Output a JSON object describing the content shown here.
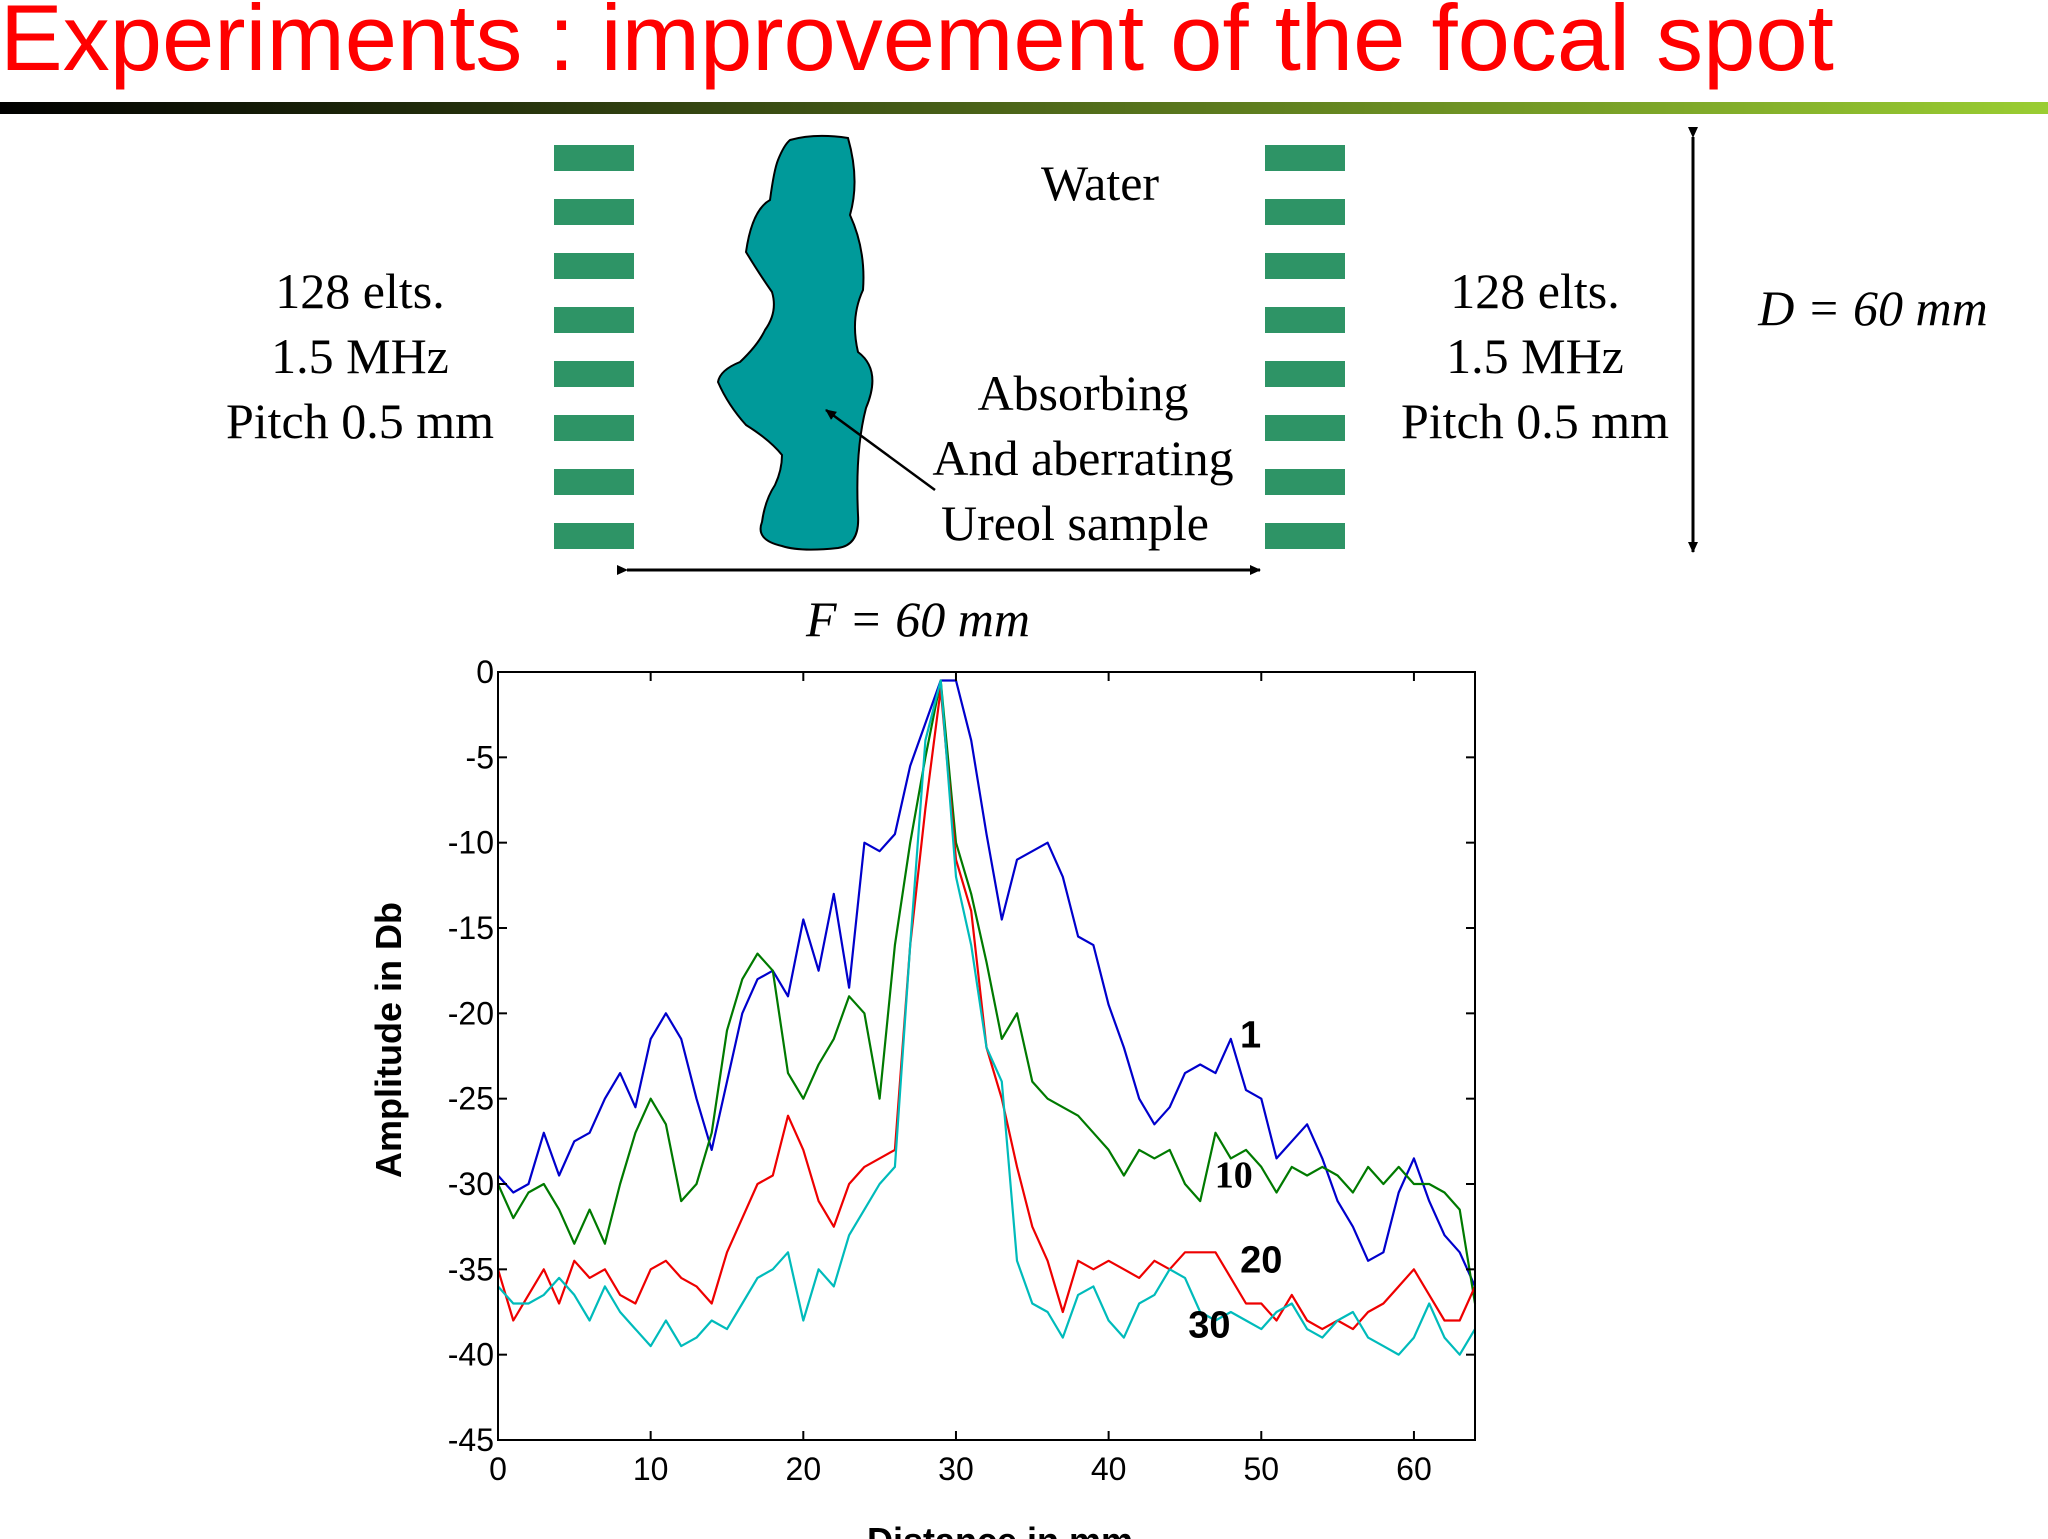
{
  "title": "Experiments : improvement of the focal spot",
  "colors": {
    "title": "#ff0000",
    "bar_gradient": [
      "#000000",
      "#9acd32"
    ],
    "element": "#2e9466",
    "sample": "#009a9a",
    "series": [
      "#0000cc",
      "#007a00",
      "#ee0000",
      "#00bbbb"
    ]
  },
  "diagram": {
    "medium_label": "Water",
    "left_array": [
      "128 elts.",
      "1.5 MHz",
      "Pitch 0.5 mm"
    ],
    "right_array": [
      "128 elts.",
      "1.5 MHz",
      "Pitch 0.5 mm"
    ],
    "sample_label": [
      "Absorbing",
      "And aberrating",
      "Ureol sample"
    ],
    "focal_label": "F = 60 mm",
    "aperture_label": "D = 60 mm"
  },
  "chart_data": {
    "type": "line",
    "xlabel": "Distance in mm",
    "ylabel": "Amplitude in Db",
    "xlim": [
      0,
      64
    ],
    "ylim": [
      -45,
      0
    ],
    "xticks": [
      "0",
      "10",
      "20",
      "30",
      "40",
      "50",
      "60"
    ],
    "yticks": [
      "0",
      "-5",
      "-10",
      "-15",
      "-20",
      "-25",
      "-30",
      "-35",
      "-40",
      "-45"
    ],
    "grid": false,
    "series": [
      {
        "name": "1",
        "points": [
          [
            0,
            -29.5
          ],
          [
            1,
            -30.5
          ],
          [
            2,
            -30
          ],
          [
            3,
            -27
          ],
          [
            4,
            -29.5
          ],
          [
            5,
            -27.5
          ],
          [
            6,
            -27
          ],
          [
            7,
            -25
          ],
          [
            8,
            -23.5
          ],
          [
            9,
            -25.5
          ],
          [
            10,
            -21.5
          ],
          [
            11,
            -20
          ],
          [
            12,
            -21.5
          ],
          [
            13,
            -25
          ],
          [
            14,
            -28
          ],
          [
            15,
            -24
          ],
          [
            16,
            -20
          ],
          [
            17,
            -18
          ],
          [
            18,
            -17.5
          ],
          [
            19,
            -19
          ],
          [
            20,
            -14.5
          ],
          [
            21,
            -17.5
          ],
          [
            22,
            -13
          ],
          [
            23,
            -18.5
          ],
          [
            24,
            -10
          ],
          [
            25,
            -10.5
          ],
          [
            26,
            -9.5
          ],
          [
            27,
            -5.5
          ],
          [
            28,
            -3
          ],
          [
            29,
            -0.5
          ],
          [
            30,
            -0.5
          ],
          [
            31,
            -4
          ],
          [
            32,
            -9.5
          ],
          [
            33,
            -14.5
          ],
          [
            34,
            -11
          ],
          [
            35,
            -10.5
          ],
          [
            36,
            -10
          ],
          [
            37,
            -12
          ],
          [
            38,
            -15.5
          ],
          [
            39,
            -16
          ],
          [
            40,
            -19.5
          ],
          [
            41,
            -22
          ],
          [
            42,
            -25
          ],
          [
            43,
            -26.5
          ],
          [
            44,
            -25.5
          ],
          [
            45,
            -23.5
          ],
          [
            46,
            -23
          ],
          [
            47,
            -23.5
          ],
          [
            48,
            -21.5
          ],
          [
            49,
            -24.5
          ],
          [
            50,
            -25
          ],
          [
            51,
            -28.5
          ],
          [
            52,
            -27.5
          ],
          [
            53,
            -26.5
          ],
          [
            54,
            -28.5
          ],
          [
            55,
            -31
          ],
          [
            56,
            -32.5
          ],
          [
            57,
            -34.5
          ],
          [
            58,
            -34
          ],
          [
            59,
            -30.5
          ],
          [
            60,
            -28.5
          ],
          [
            61,
            -31
          ],
          [
            62,
            -33
          ],
          [
            63,
            -34
          ],
          [
            64,
            -36
          ]
        ]
      },
      {
        "name": "10",
        "points": [
          [
            0,
            -30
          ],
          [
            1,
            -32
          ],
          [
            2,
            -30.5
          ],
          [
            3,
            -30
          ],
          [
            4,
            -31.5
          ],
          [
            5,
            -33.5
          ],
          [
            6,
            -31.5
          ],
          [
            7,
            -33.5
          ],
          [
            8,
            -30
          ],
          [
            9,
            -27
          ],
          [
            10,
            -25
          ],
          [
            11,
            -26.5
          ],
          [
            12,
            -31
          ],
          [
            13,
            -30
          ],
          [
            14,
            -27
          ],
          [
            15,
            -21
          ],
          [
            16,
            -18
          ],
          [
            17,
            -16.5
          ],
          [
            18,
            -17.5
          ],
          [
            19,
            -23.5
          ],
          [
            20,
            -25
          ],
          [
            21,
            -23
          ],
          [
            22,
            -21.5
          ],
          [
            23,
            -19
          ],
          [
            24,
            -20
          ],
          [
            25,
            -25
          ],
          [
            26,
            -16
          ],
          [
            27,
            -10
          ],
          [
            28,
            -5
          ],
          [
            29,
            -0.5
          ],
          [
            30,
            -10
          ],
          [
            31,
            -13
          ],
          [
            32,
            -17
          ],
          [
            33,
            -21.5
          ],
          [
            34,
            -20
          ],
          [
            35,
            -24
          ],
          [
            36,
            -25
          ],
          [
            37,
            -25.5
          ],
          [
            38,
            -26
          ],
          [
            39,
            -27
          ],
          [
            40,
            -28
          ],
          [
            41,
            -29.5
          ],
          [
            42,
            -28
          ],
          [
            43,
            -28.5
          ],
          [
            44,
            -28
          ],
          [
            45,
            -30
          ],
          [
            46,
            -31
          ],
          [
            47,
            -27
          ],
          [
            48,
            -28.5
          ],
          [
            49,
            -28
          ],
          [
            50,
            -29
          ],
          [
            51,
            -30.5
          ],
          [
            52,
            -29
          ],
          [
            53,
            -29.5
          ],
          [
            54,
            -29
          ],
          [
            55,
            -29.5
          ],
          [
            56,
            -30.5
          ],
          [
            57,
            -29
          ],
          [
            58,
            -30
          ],
          [
            59,
            -29
          ],
          [
            60,
            -30
          ],
          [
            61,
            -30
          ],
          [
            62,
            -30.5
          ],
          [
            63,
            -31.5
          ],
          [
            64,
            -37
          ]
        ]
      },
      {
        "name": "20",
        "points": [
          [
            0,
            -35
          ],
          [
            1,
            -38
          ],
          [
            2,
            -36.5
          ],
          [
            3,
            -35
          ],
          [
            4,
            -37
          ],
          [
            5,
            -34.5
          ],
          [
            6,
            -35.5
          ],
          [
            7,
            -35
          ],
          [
            8,
            -36.5
          ],
          [
            9,
            -37
          ],
          [
            10,
            -35
          ],
          [
            11,
            -34.5
          ],
          [
            12,
            -35.5
          ],
          [
            13,
            -36
          ],
          [
            14,
            -37
          ],
          [
            15,
            -34
          ],
          [
            16,
            -32
          ],
          [
            17,
            -30
          ],
          [
            18,
            -29.5
          ],
          [
            19,
            -26
          ],
          [
            20,
            -28
          ],
          [
            21,
            -31
          ],
          [
            22,
            -32.5
          ],
          [
            23,
            -30
          ],
          [
            24,
            -29
          ],
          [
            25,
            -28.5
          ],
          [
            26,
            -28
          ],
          [
            27,
            -16
          ],
          [
            28,
            -8
          ],
          [
            29,
            -1
          ],
          [
            30,
            -11
          ],
          [
            31,
            -14
          ],
          [
            32,
            -22
          ],
          [
            33,
            -25
          ],
          [
            34,
            -29
          ],
          [
            35,
            -32.5
          ],
          [
            36,
            -34.5
          ],
          [
            37,
            -37.5
          ],
          [
            38,
            -34.5
          ],
          [
            39,
            -35
          ],
          [
            40,
            -34.5
          ],
          [
            41,
            -35
          ],
          [
            42,
            -35.5
          ],
          [
            43,
            -34.5
          ],
          [
            44,
            -35
          ],
          [
            45,
            -34
          ],
          [
            46,
            -34
          ],
          [
            47,
            -34
          ],
          [
            48,
            -35.5
          ],
          [
            49,
            -37
          ],
          [
            50,
            -37
          ],
          [
            51,
            -38
          ],
          [
            52,
            -36.5
          ],
          [
            53,
            -38
          ],
          [
            54,
            -38.5
          ],
          [
            55,
            -38
          ],
          [
            56,
            -38.5
          ],
          [
            57,
            -37.5
          ],
          [
            58,
            -37
          ],
          [
            59,
            -36
          ],
          [
            60,
            -35
          ],
          [
            61,
            -36.5
          ],
          [
            62,
            -38
          ],
          [
            63,
            -38
          ],
          [
            64,
            -36
          ]
        ]
      },
      {
        "name": "30",
        "points": [
          [
            0,
            -36
          ],
          [
            1,
            -37
          ],
          [
            2,
            -37
          ],
          [
            3,
            -36.5
          ],
          [
            4,
            -35.5
          ],
          [
            5,
            -36.5
          ],
          [
            6,
            -38
          ],
          [
            7,
            -36
          ],
          [
            8,
            -37.5
          ],
          [
            9,
            -38.5
          ],
          [
            10,
            -39.5
          ],
          [
            11,
            -38
          ],
          [
            12,
            -39.5
          ],
          [
            13,
            -39
          ],
          [
            14,
            -38
          ],
          [
            15,
            -38.5
          ],
          [
            16,
            -37
          ],
          [
            17,
            -35.5
          ],
          [
            18,
            -35
          ],
          [
            19,
            -34
          ],
          [
            20,
            -38
          ],
          [
            21,
            -35
          ],
          [
            22,
            -36
          ],
          [
            23,
            -33
          ],
          [
            24,
            -31.5
          ],
          [
            25,
            -30
          ],
          [
            26,
            -29
          ],
          [
            27,
            -16
          ],
          [
            28,
            -4
          ],
          [
            29,
            -0.5
          ],
          [
            30,
            -12
          ],
          [
            31,
            -16
          ],
          [
            32,
            -22
          ],
          [
            33,
            -24
          ],
          [
            34,
            -34.5
          ],
          [
            35,
            -37
          ],
          [
            36,
            -37.5
          ],
          [
            37,
            -39
          ],
          [
            38,
            -36.5
          ],
          [
            39,
            -36
          ],
          [
            40,
            -38
          ],
          [
            41,
            -39
          ],
          [
            42,
            -37
          ],
          [
            43,
            -36.5
          ],
          [
            44,
            -35
          ],
          [
            45,
            -35.5
          ],
          [
            46,
            -37.5
          ],
          [
            47,
            -38
          ],
          [
            48,
            -37.5
          ],
          [
            49,
            -38
          ],
          [
            50,
            -38.5
          ],
          [
            51,
            -37.5
          ],
          [
            52,
            -37
          ],
          [
            53,
            -38.5
          ],
          [
            54,
            -39
          ],
          [
            55,
            -38
          ],
          [
            56,
            -37.5
          ],
          [
            57,
            -39
          ],
          [
            58,
            -39.5
          ],
          [
            59,
            -40
          ],
          [
            60,
            -39
          ],
          [
            61,
            -37
          ],
          [
            62,
            -39
          ],
          [
            63,
            -40
          ],
          [
            64,
            -38.5
          ]
        ]
      }
    ]
  }
}
